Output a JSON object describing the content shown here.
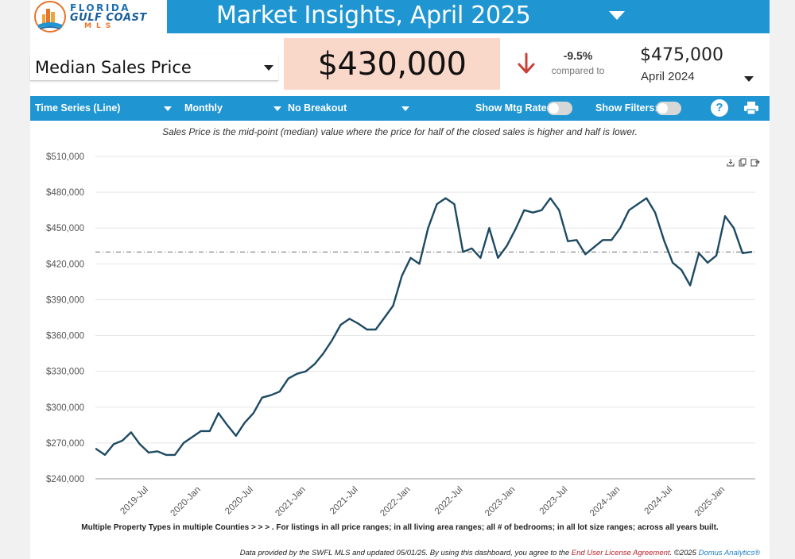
{
  "header": {
    "logo": {
      "line1": "FLORIDA",
      "line2": "GULF COAST",
      "line3": "MLS",
      "icon": "palm-building-logo-icon"
    },
    "title": "Market Insights, April 2025"
  },
  "metric": {
    "selected": "Median Sales Price",
    "value": "$430,000",
    "change_pct": "-9.5%",
    "change_direction": "down",
    "compared_to_label": "compared to",
    "prior_value": "$475,000",
    "prior_period": "April 2024"
  },
  "toolbar": {
    "chart_type": "Time Series (Line)",
    "interval": "Monthly",
    "breakout": "No Breakout",
    "mtg_rate_label": "Show Mtg Rate:",
    "filters_label": "Show Filters:",
    "help_label": "?"
  },
  "caption": "Sales Price is the mid-point (median) value where the price for half of the closed sales is higher and half is lower.",
  "chart_data": {
    "type": "line",
    "title": "",
    "xlabel": "",
    "ylabel": "",
    "ylim": [
      240000,
      510000
    ],
    "y_ticks": [
      240000,
      270000,
      300000,
      330000,
      360000,
      390000,
      420000,
      450000,
      480000,
      510000
    ],
    "y_tick_labels": [
      "$240,000",
      "$270,000",
      "$300,000",
      "$330,000",
      "$360,000",
      "$390,000",
      "$420,000",
      "$450,000",
      "$480,000",
      "$510,000"
    ],
    "x_ticks": [
      "2019-Jul",
      "2020-Jan",
      "2020-Jul",
      "2021-Jan",
      "2021-Jul",
      "2022-Jan",
      "2022-Jul",
      "2023-Jan",
      "2023-Jul",
      "2024-Jan",
      "2024-Jul",
      "2025-Jan"
    ],
    "x": [
      "2019-Jan",
      "2019-Feb",
      "2019-Mar",
      "2019-Apr",
      "2019-May",
      "2019-Jun",
      "2019-Jul",
      "2019-Aug",
      "2019-Sep",
      "2019-Oct",
      "2019-Nov",
      "2019-Dec",
      "2020-Jan",
      "2020-Feb",
      "2020-Mar",
      "2020-Apr",
      "2020-May",
      "2020-Jun",
      "2020-Jul",
      "2020-Aug",
      "2020-Sep",
      "2020-Oct",
      "2020-Nov",
      "2020-Dec",
      "2021-Jan",
      "2021-Feb",
      "2021-Mar",
      "2021-Apr",
      "2021-May",
      "2021-Jun",
      "2021-Jul",
      "2021-Aug",
      "2021-Sep",
      "2021-Oct",
      "2021-Nov",
      "2021-Dec",
      "2022-Jan",
      "2022-Feb",
      "2022-Mar",
      "2022-Apr",
      "2022-May",
      "2022-Jun",
      "2022-Jul",
      "2022-Aug",
      "2022-Sep",
      "2022-Oct",
      "2022-Nov",
      "2022-Dec",
      "2023-Jan",
      "2023-Feb",
      "2023-Mar",
      "2023-Apr",
      "2023-May",
      "2023-Jun",
      "2023-Jul",
      "2023-Aug",
      "2023-Sep",
      "2023-Oct",
      "2023-Nov",
      "2023-Dec",
      "2024-Jan",
      "2024-Feb",
      "2024-Mar",
      "2024-Apr",
      "2024-May",
      "2024-Jun",
      "2024-Jul",
      "2024-Aug",
      "2024-Sep",
      "2024-Oct",
      "2024-Nov",
      "2024-Dec",
      "2025-Jan",
      "2025-Feb",
      "2025-Mar",
      "2025-Apr"
    ],
    "values": [
      265000,
      260000,
      269000,
      272000,
      279000,
      269000,
      262000,
      263000,
      260000,
      260000,
      270000,
      275000,
      280000,
      280000,
      295000,
      285000,
      276000,
      287000,
      295000,
      308000,
      310000,
      313000,
      324000,
      328000,
      330000,
      336000,
      345000,
      356000,
      369000,
      374000,
      370000,
      365000,
      365000,
      375000,
      385000,
      410000,
      425000,
      420000,
      450000,
      470000,
      475000,
      470000,
      430000,
      433000,
      425000,
      450000,
      425000,
      435000,
      449000,
      465000,
      463000,
      465000,
      475000,
      465000,
      439000,
      440000,
      428000,
      434000,
      440000,
      440000,
      450000,
      465000,
      470000,
      475000,
      463000,
      440000,
      421000,
      415000,
      402000,
      429000,
      421000,
      427000,
      460000,
      450000,
      429000,
      430000
    ],
    "reference_line": {
      "value": 430000,
      "style": "dash-dot"
    },
    "series_color": "#1d4a63",
    "grid": "horizontal",
    "legend": "none"
  },
  "chart_tools": {
    "icons": [
      "download-icon",
      "copy-icon",
      "export-icon"
    ]
  },
  "filter_note": "Multiple Property Types in multiple Counties > > > . For listings in all price ranges; in all living area ranges; all # of bedrooms; in all lot size ranges; across all years built.",
  "footer": {
    "text": "Data provided by the SWFL MLS and updated 05/01/25.  By using this dashboard, you agree to the ",
    "eula": "End User License Agreement",
    "copyright": ".  ©2025 ",
    "brand": "Domus Analytics®"
  }
}
